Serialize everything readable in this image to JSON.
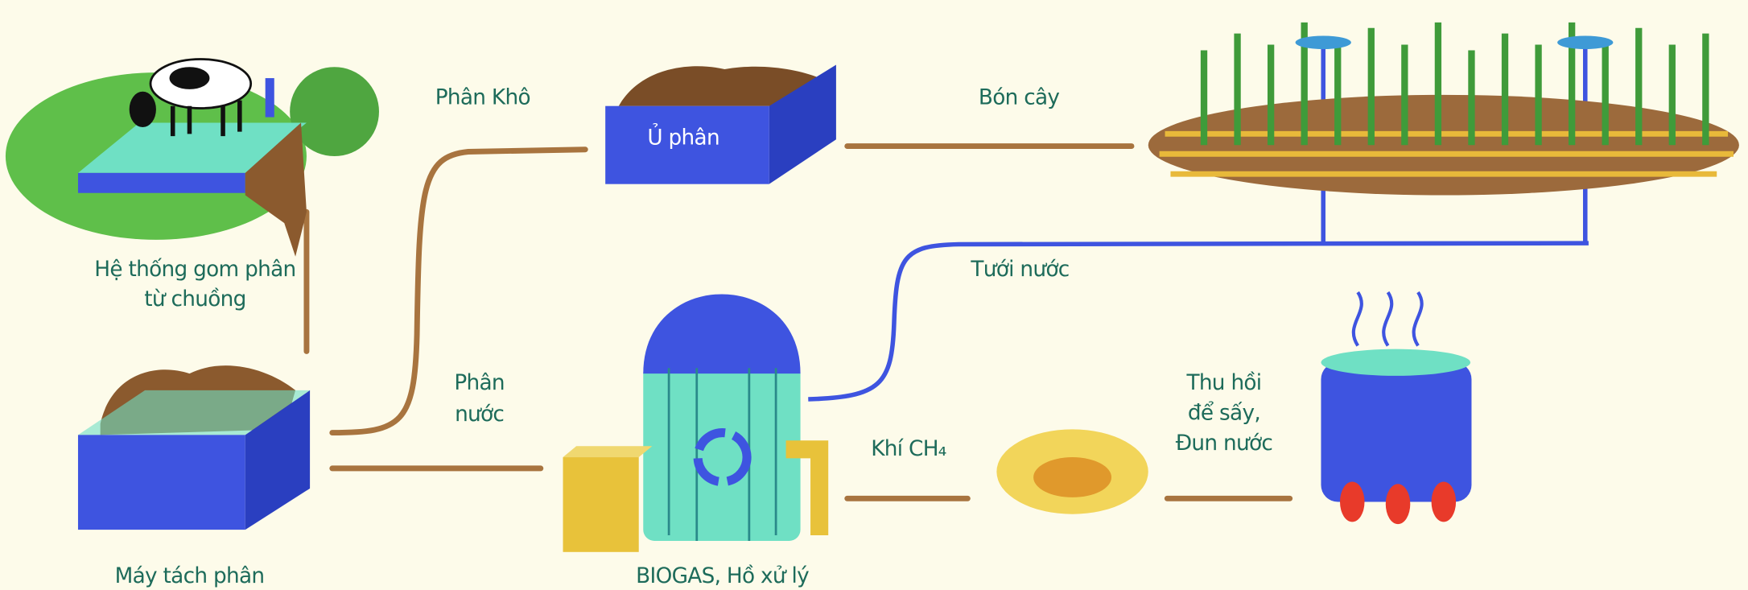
{
  "labels": {
    "collection": [
      "Hệ thống gom phân",
      "từ chuồng"
    ],
    "dry_manure": "Phân Khô",
    "compost": "Ủ phân",
    "fertilize": "Bón cây",
    "irrigate": "Tưới nước",
    "liquid_manure": [
      "Phân",
      "nước"
    ],
    "recover": [
      "Thu hồi",
      "để sấy,",
      "Đun nước"
    ],
    "methane": "Khí CH₄",
    "separator": "Máy tách phân",
    "biogas": "BIOGAS, Hồ xử lý"
  }
}
